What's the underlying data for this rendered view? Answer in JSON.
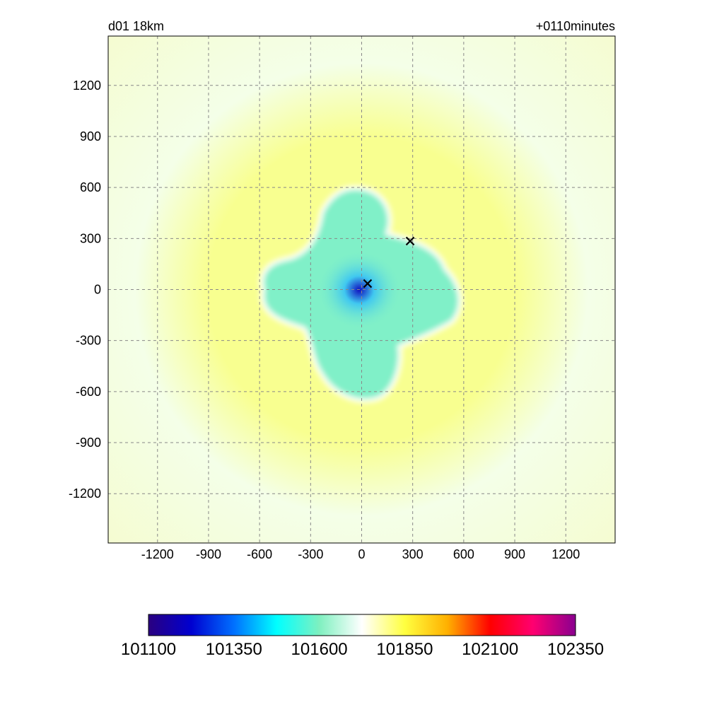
{
  "header": {
    "left_text": "d01 18km",
    "right_text": "+0110minutes"
  },
  "chart_data": {
    "type": "heatmap",
    "title": "",
    "xlabel": "",
    "ylabel": "",
    "xlim": [
      -1490,
      1490
    ],
    "ylim": [
      -1490,
      1490
    ],
    "x_ticks": [
      "-1200",
      "-900",
      "-600",
      "-300",
      "0",
      "300",
      "600",
      "900",
      "1200"
    ],
    "y_ticks": [
      "1200",
      "900",
      "600",
      "300",
      "0",
      "-300",
      "-600",
      "-900",
      "-1200"
    ],
    "grid": true,
    "markers": [
      {
        "symbol": "x",
        "x": 35,
        "y": 35
      },
      {
        "symbol": "x",
        "x": 285,
        "y": 285
      }
    ],
    "colorbar": {
      "orientation": "horizontal",
      "min": 101100,
      "max": 102350,
      "labels": [
        "101100",
        "101350",
        "101600",
        "101850",
        "102100",
        "102350"
      ],
      "colors": [
        "#2a0080",
        "#0000d0",
        "#0070ff",
        "#00ffff",
        "#7ff0c0",
        "#ffffff",
        "#ffff40",
        "#ffb000",
        "#ff0000",
        "#ff0070",
        "#8a0090"
      ]
    },
    "field_colors": {
      "low_center": "#1010c0",
      "inner": "#40c8f0",
      "cloud": "#80f0c8",
      "ring": "#f8ff90",
      "outer": "#f4ffe8",
      "corners": "#f5fcd0"
    }
  }
}
